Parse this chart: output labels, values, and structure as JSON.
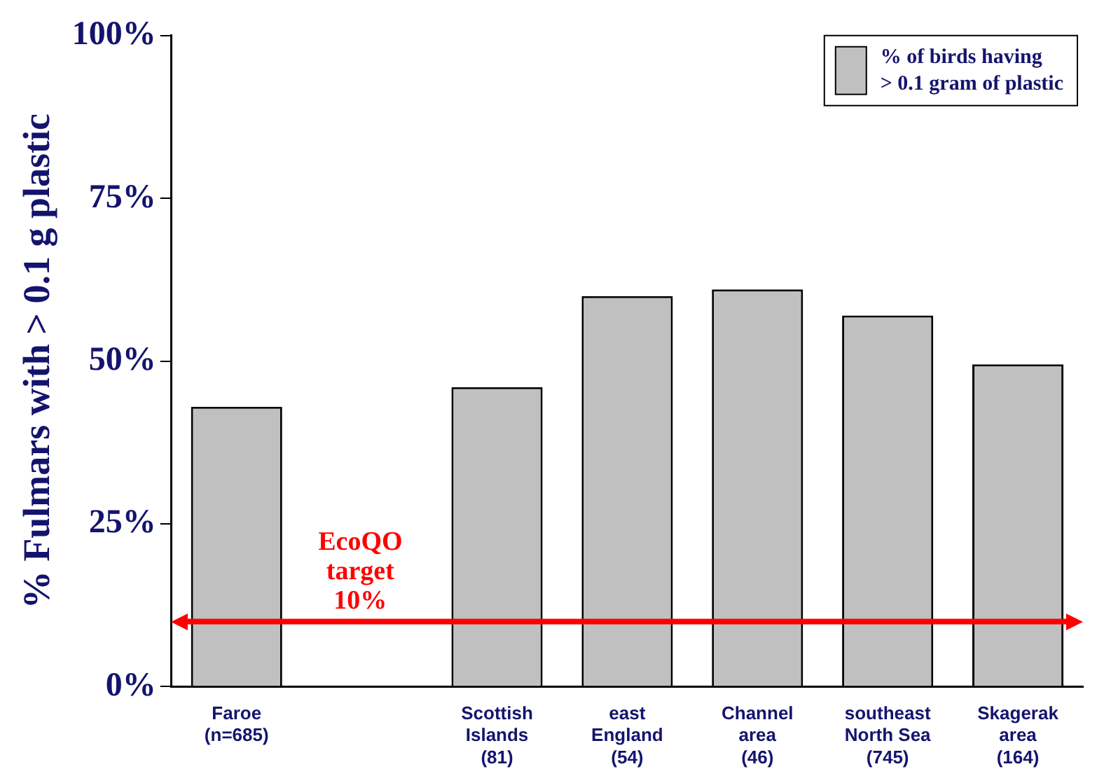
{
  "chart_data": {
    "type": "bar",
    "ylabel": "% Fulmars with > 0.1 g plastic",
    "categories": [
      "Faroe\n(n=685)",
      null,
      "Scottish\nIslands\n(81)",
      "east\nEngland\n(54)",
      "Channel\narea\n(46)",
      "southeast\nNorth Sea\n(745)",
      "Skagerak\narea\n(164)"
    ],
    "series": [
      {
        "name": "% of birds having\n> 0.1 gram of plastic",
        "color": "#c0c0c0",
        "values": [
          43,
          null,
          46,
          60,
          61,
          57,
          49.5
        ]
      }
    ],
    "ylim": [
      0,
      100
    ],
    "yticks": [
      {
        "value": 0,
        "label": "0%"
      },
      {
        "value": 25,
        "label": "25%"
      },
      {
        "value": 50,
        "label": "50%"
      },
      {
        "value": 75,
        "label": "75%"
      },
      {
        "value": 100,
        "label": "100%"
      }
    ],
    "ref_lines": [
      {
        "axis": "y",
        "value": 10,
        "label": "EcoQO\ntarget\n10%",
        "color": "#ff0000"
      }
    ],
    "grid": false,
    "legend": "top right"
  }
}
